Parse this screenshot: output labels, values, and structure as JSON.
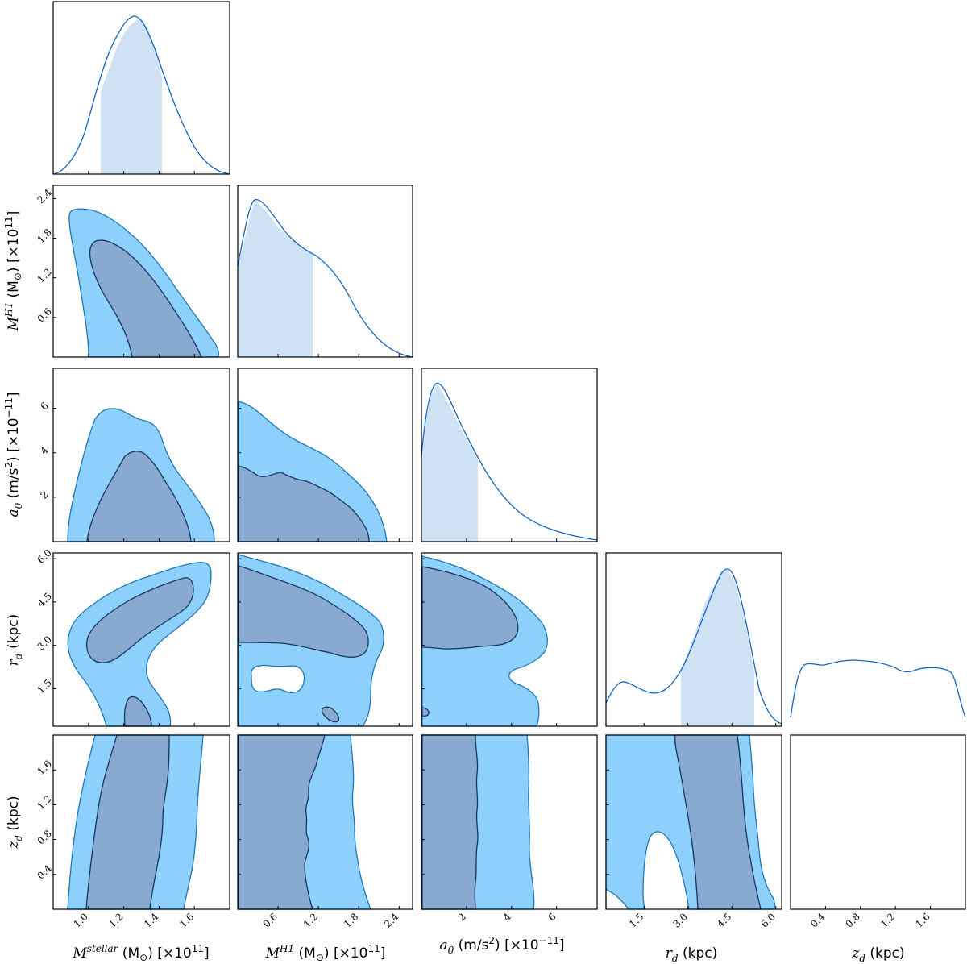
{
  "chart_data": {
    "type": "corner",
    "parameters": [
      {
        "id": "mstellar",
        "symbol": "M",
        "sup": "stellar",
        "unit": " (M",
        "unit_sub": "⊙",
        "unit_end": ") [×10",
        "exp": "11",
        "close": "]",
        "ticks": [
          "1.0",
          "1.2",
          "1.4",
          "1.6"
        ],
        "range": [
          0.8,
          1.8
        ]
      },
      {
        "id": "mh1",
        "symbol": "M",
        "sup": "H1",
        "unit": " (M",
        "unit_sub": "⊙",
        "unit_end": ") [×10",
        "exp": "11",
        "close": "]",
        "ticks": [
          "0.6",
          "1.2",
          "1.8",
          "2.4"
        ],
        "range": [
          0.0,
          2.6
        ]
      },
      {
        "id": "a0",
        "symbol": "a",
        "sub": "0",
        "unit": " (m/s",
        "unit_sup": "2",
        "unit_end": ") [×10",
        "exp": "−11",
        "close": "]",
        "ticks": [
          "2",
          "4",
          "6"
        ],
        "range": [
          0.0,
          7.8
        ]
      },
      {
        "id": "rd",
        "symbol": "r",
        "sub": "d",
        "unit": " (kpc)",
        "ticks": [
          "1.5",
          "3.0",
          "4.5",
          "6.0"
        ],
        "range": [
          0.2,
          6.2
        ]
      },
      {
        "id": "zd",
        "symbol": "z",
        "sub": "d",
        "unit": " (kpc)",
        "ticks": [
          "0.4",
          "0.8",
          "1.2",
          "1.6"
        ],
        "range": [
          0.0,
          2.0
        ]
      }
    ],
    "marginals": [
      {
        "param": "mstellar",
        "shape": "bell",
        "peak": 1.25,
        "credible_interval": [
          1.1,
          1.43
        ]
      },
      {
        "param": "mh1",
        "shape": "skewed",
        "peak": 0.4,
        "credible_interval": [
          0.0,
          1.17
        ]
      },
      {
        "param": "a0",
        "shape": "skewed",
        "peak": 0.6,
        "credible_interval": [
          0.0,
          2.5
        ]
      },
      {
        "param": "rd",
        "shape": "bimodal",
        "peak": 4.2,
        "credible_interval": [
          2.7,
          5.2
        ]
      },
      {
        "param": "zd",
        "shape": "flat",
        "peak": 0.75,
        "credible_interval": null
      }
    ],
    "contour_levels": [
      "68%",
      "95%"
    ],
    "colors": {
      "outer_fill": "#8dd0fb",
      "outer_line": "#1f78b4",
      "inner_fill": "#88aad0",
      "inner_line": "#17365f",
      "marginal_line": "#1565c0",
      "interval_fill": "#cfe2f3"
    }
  }
}
